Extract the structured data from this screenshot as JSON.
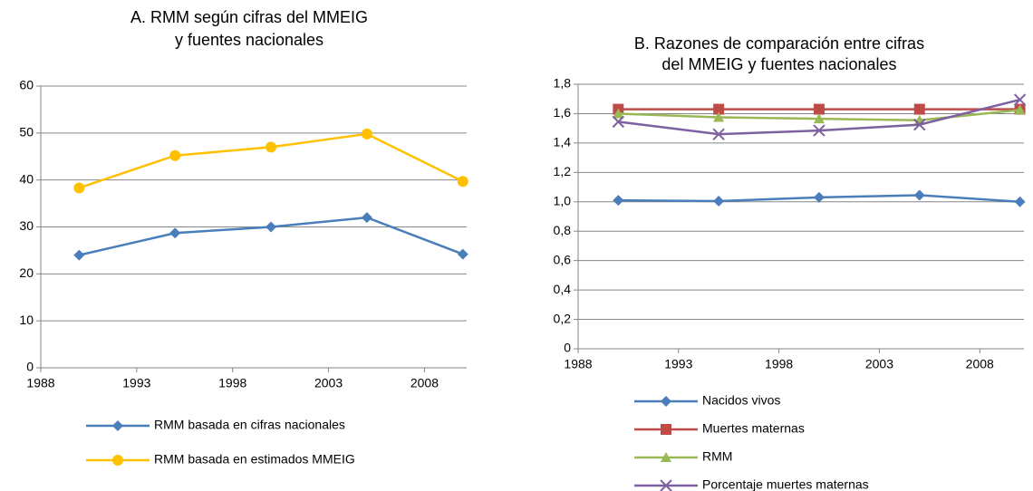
{
  "chart_data": [
    {
      "type": "line",
      "title": [
        "A. RMM según cifras del MMEIG",
        "y fuentes nacionales"
      ],
      "x": [
        1990,
        1995,
        2000,
        2005,
        2010
      ],
      "xlim": [
        1988,
        2010.2
      ],
      "xticks": [
        1988,
        1993,
        1998,
        2003,
        2008
      ],
      "ylim": [
        0,
        60
      ],
      "yticks": [
        0,
        10,
        20,
        30,
        40,
        50,
        60
      ],
      "grid": true,
      "series": [
        {
          "name": "RMM basada en cifras nacionales",
          "color": "#4a7ebb",
          "marker": "diamond",
          "values": [
            24,
            28.7,
            30,
            32,
            24.2
          ]
        },
        {
          "name": "RMM basada en estimados MMEIG",
          "color": "#ffc000",
          "marker": "circle",
          "values": [
            38.3,
            45.2,
            47,
            49.8,
            39.7
          ]
        }
      ]
    },
    {
      "type": "line",
      "title": [
        "B. Razones de comparación entre cifras",
        "del MMEIG y fuentes nacionales"
      ],
      "x": [
        1990,
        1995,
        2000,
        2005,
        2010
      ],
      "xlim": [
        1988,
        2010.2
      ],
      "xticks": [
        1988,
        1993,
        1998,
        2003,
        2008
      ],
      "ylim": [
        0,
        1.8
      ],
      "yticks": [
        0,
        {
          "value": 0.2,
          "label": "0,2"
        },
        {
          "value": 0.4,
          "label": "0,4"
        },
        {
          "value": 0.6,
          "label": "0,6"
        },
        {
          "value": 0.8,
          "label": "0,8"
        },
        {
          "value": 1.0,
          "label": "1,0"
        },
        {
          "value": 1.2,
          "label": "1,2"
        },
        {
          "value": 1.4,
          "label": "1,4"
        },
        {
          "value": 1.6,
          "label": "1,6"
        },
        {
          "value": 1.8,
          "label": "1,8"
        }
      ],
      "grid": true,
      "series": [
        {
          "name": "Nacidos vivos",
          "color": "#4a7ebb",
          "marker": "diamond",
          "values": [
            1.01,
            1.005,
            1.03,
            1.045,
            1.0
          ]
        },
        {
          "name": "Muertes maternas",
          "color": "#be4b48",
          "marker": "square",
          "values": [
            1.63,
            1.63,
            1.63,
            1.63,
            1.63
          ]
        },
        {
          "name": "RMM",
          "color": "#98b954",
          "marker": "triangle",
          "values": [
            1.6,
            1.575,
            1.565,
            1.555,
            1.625
          ]
        },
        {
          "name": "Porcentaje muertes maternas",
          "color": "#7d60a0",
          "marker": "x",
          "values": [
            1.545,
            1.46,
            1.485,
            1.525,
            1.695
          ]
        }
      ]
    }
  ]
}
